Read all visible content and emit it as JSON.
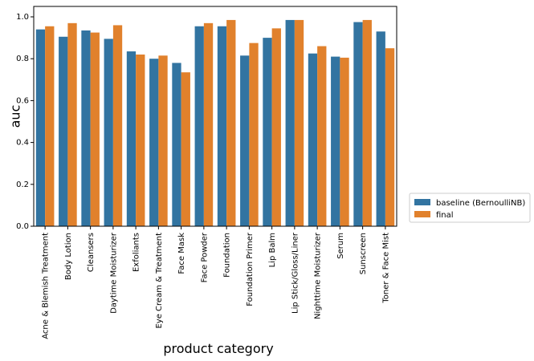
{
  "chart_data": {
    "type": "bar",
    "title": "",
    "xlabel": "product category",
    "ylabel": "auc",
    "ylim": [
      0,
      1.0
    ],
    "yticks": [
      0.0,
      0.2,
      0.4,
      0.6,
      0.8,
      1.0
    ],
    "grid": false,
    "legend_position": "outside-right-bottom",
    "categories": [
      "Acne & Blemish Treatment",
      "Body Lotion",
      "Cleansers",
      "Daytime Moisturizer",
      "Exfoliants",
      "Eye Cream & Treatment",
      "Face Mask",
      "Face Powder",
      "Foundation",
      "Foundation Primer",
      "Lip Balm",
      "Lip Stick/Gloss/Liner",
      "Nighttime Moisturizer",
      "Serum",
      "Sunscreen",
      "Toner & Face Mist"
    ],
    "series": [
      {
        "name": "baseline (BernoulliNB)",
        "color": "#3274a1",
        "values": [
          0.94,
          0.905,
          0.935,
          0.895,
          0.835,
          0.8,
          0.78,
          0.955,
          0.955,
          0.815,
          0.9,
          0.985,
          0.825,
          0.81,
          0.975,
          0.93
        ]
      },
      {
        "name": "final",
        "color": "#e1812c",
        "values": [
          0.955,
          0.97,
          0.925,
          0.96,
          0.82,
          0.815,
          0.735,
          0.97,
          0.985,
          0.875,
          0.945,
          0.985,
          0.86,
          0.805,
          0.985,
          0.85
        ]
      }
    ]
  }
}
